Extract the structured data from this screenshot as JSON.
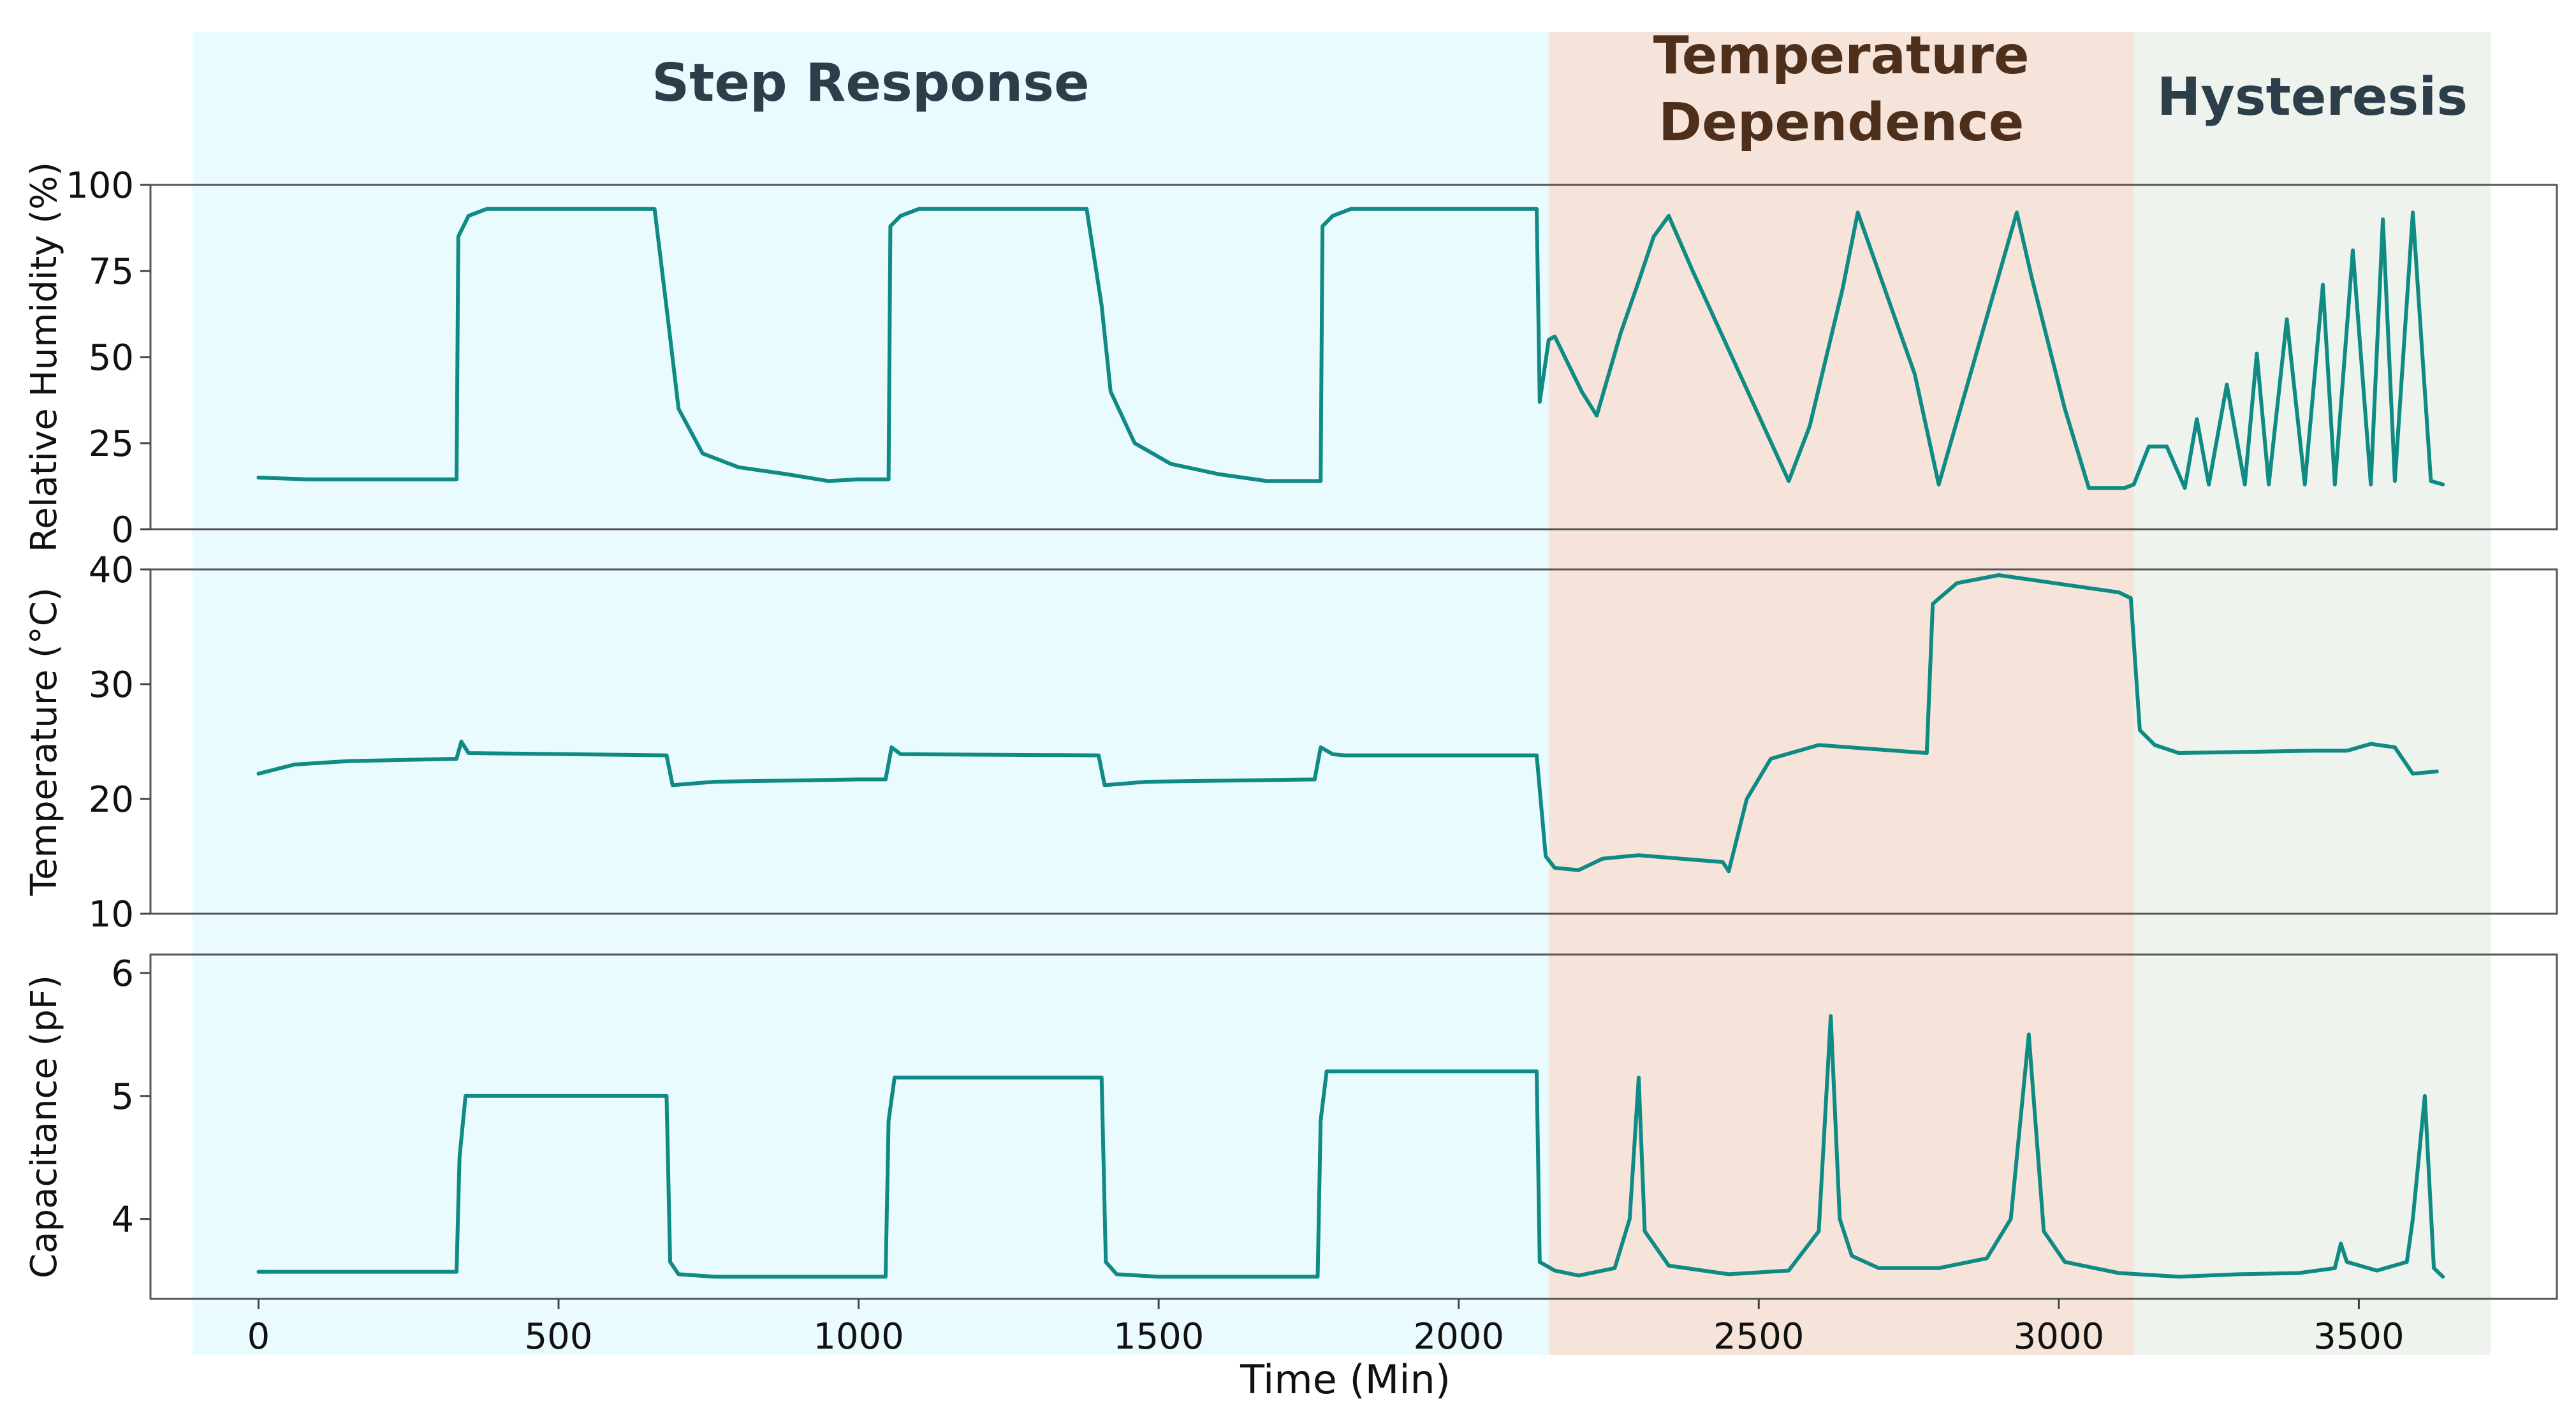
{
  "chart_data": {
    "type": "line",
    "xlabel": "Time (Min)",
    "xlim": [
      -180,
      3830
    ],
    "x_ticks": [
      0,
      500,
      1000,
      1500,
      2000,
      2500,
      3000,
      3500
    ],
    "x_tick_labels": [
      "0",
      "500",
      "1000",
      "1500",
      "2000",
      "2500",
      "3000",
      "3500"
    ],
    "line_color": "#0f8a84",
    "regions": [
      {
        "name": "Step Response",
        "x_start": -110,
        "x_end": 2150,
        "color": "#e9fbfe",
        "title_color": "#2c3e4a"
      },
      {
        "name": "Temperature Dependence",
        "title_lines": [
          "Temperature",
          "Dependence"
        ],
        "x_start": 2150,
        "x_end": 3125,
        "color": "#f6e4da",
        "title_color": "#4e2f1c"
      },
      {
        "name": "Hysteresis",
        "x_start": 3125,
        "x_end": 3720,
        "color": "#eef3ee",
        "title_color": "#2c3e4a"
      }
    ],
    "panels": [
      {
        "id": "humidity",
        "ylabel": "Relative Humidity (%)",
        "ylim": [
          0,
          100
        ],
        "y_ticks": [
          0,
          25,
          50,
          75,
          100
        ],
        "y_tick_labels": [
          "0",
          "25",
          "50",
          "75",
          "100"
        ],
        "series": [
          {
            "name": "Relative Humidity",
            "x": [
              0,
              80,
              330,
              333,
              350,
              380,
              660,
              683,
              700,
              740,
              800,
              880,
              950,
              1000,
              1050,
              1053,
              1070,
              1100,
              1380,
              1405,
              1420,
              1460,
              1520,
              1600,
              1680,
              1770,
              1773,
              1790,
              1820,
              2100,
              2130,
              2135,
              2150,
              2160,
              2205,
              2230,
              2270,
              2300,
              2325,
              2350,
              2390,
              2550,
              2585,
              2640,
              2665,
              2760,
              2800,
              2930,
              2955,
              3010,
              3050,
              3110,
              3125,
              3150,
              3180,
              3210,
              3230,
              3250,
              3280,
              3310,
              3330,
              3350,
              3380,
              3410,
              3440,
              3460,
              3490,
              3520,
              3540,
              3560,
              3590,
              3620,
              3640
            ],
            "y": [
              15,
              14.5,
              14.5,
              85,
              91,
              93,
              93,
              60,
              35,
              22,
              18,
              16,
              14,
              14.5,
              14.5,
              88,
              91,
              93,
              93,
              65,
              40,
              25,
              19,
              16,
              14,
              14,
              88,
              91,
              93,
              93,
              93,
              37,
              55,
              56,
              40,
              33,
              57,
              72,
              85,
              91,
              75,
              14,
              30,
              70,
              92,
              45,
              13,
              92,
              73,
              35,
              12,
              12,
              13,
              24,
              24,
              12,
              32,
              13,
              42,
              13,
              51,
              13,
              61,
              13,
              71,
              13,
              81,
              13,
              90,
              14,
              92,
              14,
              13
            ]
          }
        ]
      },
      {
        "id": "temperature",
        "ylabel": "Temperature (°C)",
        "ylim": [
          10,
          40
        ],
        "y_ticks": [
          10,
          20,
          30,
          40
        ],
        "y_tick_labels": [
          "10",
          "20",
          "30",
          "40"
        ],
        "series": [
          {
            "name": "Temperature",
            "x": [
              0,
              60,
              150,
              330,
              338,
              350,
              680,
              690,
              760,
              1000,
              1045,
              1055,
              1070,
              1400,
              1410,
              1480,
              1760,
              1770,
              1790,
              1810,
              2130,
              2145,
              2160,
              2200,
              2240,
              2300,
              2440,
              2450,
              2480,
              2520,
              2600,
              2780,
              2790,
              2830,
              2900,
              3100,
              3120,
              3135,
              3160,
              3200,
              3420,
              3480,
              3520,
              3560,
              3590,
              3630
            ],
            "y": [
              22.2,
              23,
              23.3,
              23.5,
              25,
              24,
              23.8,
              21.2,
              21.5,
              21.7,
              21.7,
              24.5,
              23.9,
              23.8,
              21.2,
              21.5,
              21.7,
              24.5,
              23.9,
              23.8,
              23.8,
              15,
              14,
              13.8,
              14.8,
              15.1,
              14.5,
              13.7,
              20,
              23.5,
              24.7,
              24,
              37,
              38.8,
              39.5,
              38,
              37.5,
              26,
              24.7,
              24,
              24.2,
              24.2,
              24.8,
              24.5,
              22.2,
              22.4
            ]
          }
        ]
      },
      {
        "id": "capacitance",
        "ylabel": "Capacitance (pF)",
        "ylim": [
          3.35,
          6.15
        ],
        "y_ticks": [
          4,
          5,
          6
        ],
        "y_tick_labels": [
          "4",
          "5",
          "6"
        ],
        "series": [
          {
            "name": "Capacitance",
            "x": [
              0,
              330,
              335,
              345,
              680,
              686,
              700,
              760,
              1000,
              1045,
              1050,
              1060,
              1405,
              1412,
              1430,
              1500,
              1765,
              1770,
              1780,
              2130,
              2135,
              2160,
              2200,
              2260,
              2285,
              2300,
              2310,
              2350,
              2450,
              2550,
              2600,
              2620,
              2635,
              2655,
              2700,
              2800,
              2880,
              2920,
              2950,
              2975,
              3010,
              3100,
              3200,
              3300,
              3400,
              3460,
              3470,
              3480,
              3530,
              3580,
              3590,
              3610,
              3625,
              3640
            ],
            "y": [
              3.57,
              3.57,
              4.5,
              5.0,
              5.0,
              3.65,
              3.55,
              3.53,
              3.53,
              3.53,
              4.8,
              5.15,
              5.15,
              3.65,
              3.55,
              3.53,
              3.53,
              4.8,
              5.2,
              5.2,
              3.65,
              3.58,
              3.54,
              3.6,
              4.0,
              5.15,
              3.9,
              3.62,
              3.55,
              3.58,
              3.9,
              5.65,
              4.0,
              3.7,
              3.6,
              3.6,
              3.68,
              4.0,
              5.5,
              3.9,
              3.65,
              3.56,
              3.53,
              3.55,
              3.56,
              3.6,
              3.8,
              3.65,
              3.58,
              3.65,
              4.0,
              5.0,
              3.6,
              3.53
            ]
          }
        ]
      }
    ]
  }
}
